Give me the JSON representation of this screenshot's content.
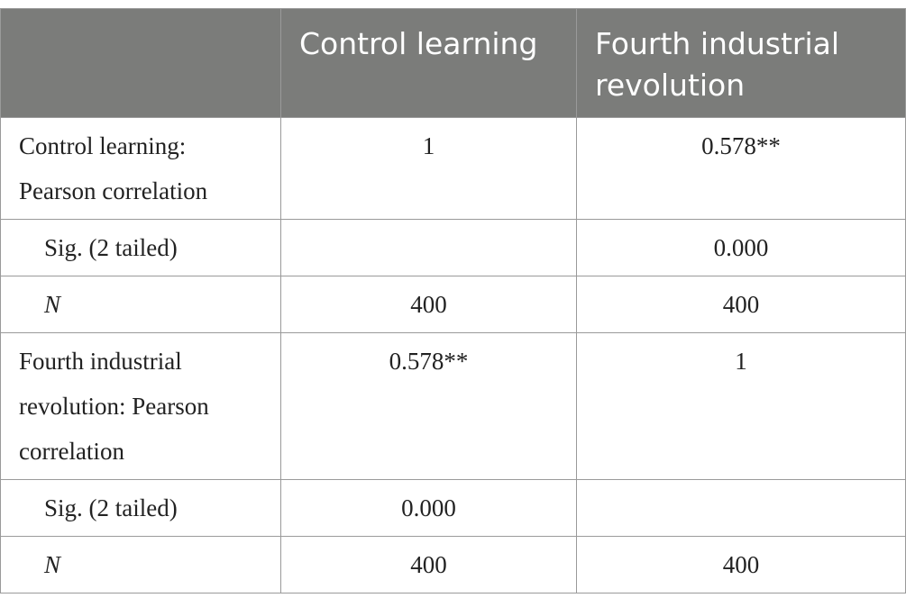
{
  "header": {
    "col0": "",
    "col1": "Control learning",
    "col2": "Fourth industrial revolution"
  },
  "rows": [
    {
      "label": "Control learning: Pearson correlation",
      "c1": "1",
      "c2": "0.578**"
    },
    {
      "label": "Sig. (2 tailed)",
      "c1": "",
      "c2": "0.000"
    },
    {
      "label": "N",
      "c1": "400",
      "c2": "400"
    },
    {
      "label": "Fourth industrial revolution: Pearson correlation",
      "c1": "0.578**",
      "c2": "1"
    },
    {
      "label": "Sig. (2 tailed)",
      "c1": "0.000",
      "c2": ""
    },
    {
      "label": "N",
      "c1": "400",
      "c2": "400"
    }
  ]
}
